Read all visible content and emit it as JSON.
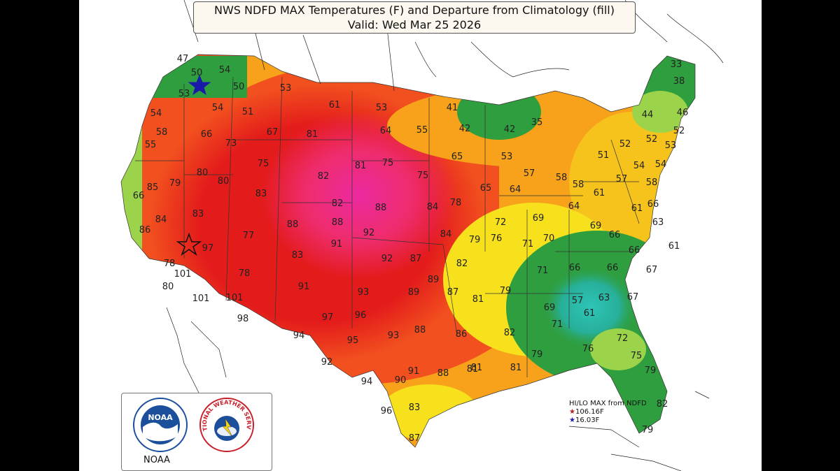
{
  "title": {
    "line1": "NWS NDFD MAX Temperatures (F) and Departure from Climatology (fill)",
    "line2": "Valid: Wed Mar 25 2026"
  },
  "legend": {
    "heading": "HI/LO MAX from NDFD",
    "high": "106.16F",
    "low": "16.03F",
    "high_color": "#b22222",
    "low_color": "#1a1aa8"
  },
  "logo": {
    "noaa_label": "NOAA",
    "noaa_badge": "NOAA",
    "nws_arc_text": "NATIONAL WEATHER SERVICE"
  },
  "colors": {
    "anomaly_much_below": "#2ec4b6",
    "anomaly_below": "#2e9e3e",
    "anomaly_slightly_below": "#9bd44a",
    "anomaly_near": "#f6e11c",
    "anomaly_slightly_above": "#f7a21a",
    "anomaly_above": "#f2501f",
    "anomaly_well_above": "#e01c1c",
    "anomaly_extreme": "#ec2aa0"
  },
  "map_labels": [
    {
      "v": "47"
    },
    {
      "v": "50"
    },
    {
      "v": "54"
    },
    {
      "v": "53"
    },
    {
      "v": "50"
    },
    {
      "v": "53"
    },
    {
      "v": "54"
    },
    {
      "v": "51"
    },
    {
      "v": "61"
    },
    {
      "v": "53"
    },
    {
      "v": "41"
    },
    {
      "v": "33"
    },
    {
      "v": "38"
    },
    {
      "v": "54"
    },
    {
      "v": "58"
    },
    {
      "v": "66"
    },
    {
      "v": "67"
    },
    {
      "v": "81"
    },
    {
      "v": "64"
    },
    {
      "v": "55"
    },
    {
      "v": "42"
    },
    {
      "v": "42"
    },
    {
      "v": "35"
    },
    {
      "v": "44"
    },
    {
      "v": "46"
    },
    {
      "v": "55"
    },
    {
      "v": "73"
    },
    {
      "v": "52"
    },
    {
      "v": "52"
    },
    {
      "v": "52"
    },
    {
      "v": "53"
    },
    {
      "v": "75"
    },
    {
      "v": "82"
    },
    {
      "v": "81"
    },
    {
      "v": "75"
    },
    {
      "v": "65"
    },
    {
      "v": "53"
    },
    {
      "v": "51"
    },
    {
      "v": "54"
    },
    {
      "v": "54"
    },
    {
      "v": "80"
    },
    {
      "v": "80"
    },
    {
      "v": "79"
    },
    {
      "v": "85"
    },
    {
      "v": "83"
    },
    {
      "v": "75"
    },
    {
      "v": "57"
    },
    {
      "v": "58"
    },
    {
      "v": "58"
    },
    {
      "v": "57"
    },
    {
      "v": "58"
    },
    {
      "v": "66"
    },
    {
      "v": "65"
    },
    {
      "v": "64"
    },
    {
      "v": "61"
    },
    {
      "v": "82"
    },
    {
      "v": "88"
    },
    {
      "v": "84"
    },
    {
      "v": "78"
    },
    {
      "v": "66"
    },
    {
      "v": "64"
    },
    {
      "v": "61"
    },
    {
      "v": "83"
    },
    {
      "v": "84"
    },
    {
      "v": "88"
    },
    {
      "v": "88"
    },
    {
      "v": "72"
    },
    {
      "v": "69"
    },
    {
      "v": "63"
    },
    {
      "v": "86"
    },
    {
      "v": "77"
    },
    {
      "v": "92"
    },
    {
      "v": "84"
    },
    {
      "v": "79"
    },
    {
      "v": "76"
    },
    {
      "v": "69"
    },
    {
      "v": "66"
    },
    {
      "v": "97"
    },
    {
      "v": "91"
    },
    {
      "v": "71"
    },
    {
      "v": "70"
    },
    {
      "v": "61"
    },
    {
      "v": "66"
    },
    {
      "v": "83"
    },
    {
      "v": "92"
    },
    {
      "v": "87"
    },
    {
      "v": "82"
    },
    {
      "v": "78"
    },
    {
      "v": "71"
    },
    {
      "v": "66"
    },
    {
      "v": "66"
    },
    {
      "v": "67"
    },
    {
      "v": "101"
    },
    {
      "v": "78"
    },
    {
      "v": "80"
    },
    {
      "v": "91"
    },
    {
      "v": "93"
    },
    {
      "v": "89"
    },
    {
      "v": "89"
    },
    {
      "v": "87"
    },
    {
      "v": "79"
    },
    {
      "v": "101"
    },
    {
      "v": "101"
    },
    {
      "v": "81"
    },
    {
      "v": "69"
    },
    {
      "v": "57"
    },
    {
      "v": "63"
    },
    {
      "v": "67"
    },
    {
      "v": "61"
    },
    {
      "v": "98"
    },
    {
      "v": "97"
    },
    {
      "v": "96"
    },
    {
      "v": "71"
    },
    {
      "v": "82"
    },
    {
      "v": "94"
    },
    {
      "v": "88"
    },
    {
      "v": "86"
    },
    {
      "v": "95"
    },
    {
      "v": "93"
    },
    {
      "v": "72"
    },
    {
      "v": "76"
    },
    {
      "v": "79"
    },
    {
      "v": "92"
    },
    {
      "v": "75"
    },
    {
      "v": "91"
    },
    {
      "v": "81"
    },
    {
      "v": "81"
    },
    {
      "v": "79"
    },
    {
      "v": "94"
    },
    {
      "v": "90"
    },
    {
      "v": "88"
    },
    {
      "v": "81"
    },
    {
      "v": "96"
    },
    {
      "v": "83"
    },
    {
      "v": "82"
    },
    {
      "v": "79"
    },
    {
      "v": "87"
    }
  ]
}
